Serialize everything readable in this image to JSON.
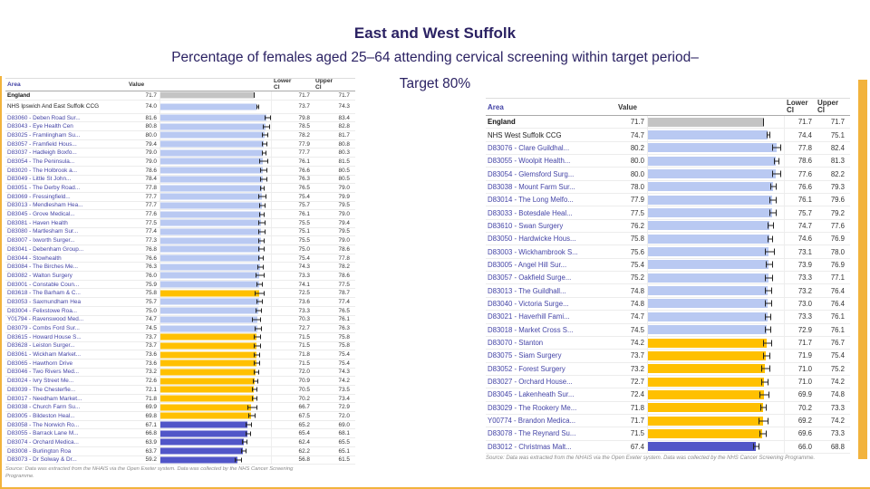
{
  "slide": {
    "title": "East and West Suffolk",
    "subtitle_line1": "Percentage of females aged 25–64 attending cervical screening within target period–",
    "subtitle_line2": "Target 80%"
  },
  "table_columns": {
    "area": "Area",
    "value": "Value",
    "lower": "Lower\nCI",
    "upper": "Upper\nCI"
  },
  "source": "Source: Data was extracted from the NHAIS via the Open Exeter system. Data was collected by the NHS Cancer Screening Programme.",
  "colors": {
    "title": "#2b2263",
    "accent": "#f2b33d",
    "england": "#c4c4c4",
    "ccg": "#b9c9f2",
    "similar": "#b9c9f2",
    "worse": "#ffc000",
    "worst": "#5156c8"
  },
  "chart_data": [
    {
      "type": "bar",
      "xlim": [
        0,
        85
      ],
      "legend_note": "bar colours: grey = England, light blue = similar/above, amber = worse, dark blue = lowest",
      "rows": [
        {
          "area": "England",
          "value": 71.7,
          "lower": 71.7,
          "upper": 71.7,
          "band": "england"
        },
        {
          "area": "NHS Ipswich And East Suffolk CCG",
          "value": 74.0,
          "lower": 73.7,
          "upper": 74.3,
          "band": "ccg",
          "wrap": true
        },
        {
          "area": "D83060 - Deben Road Sur...",
          "value": 81.6,
          "lower": 79.8,
          "upper": 83.4,
          "band": "similar"
        },
        {
          "area": "D83043 - Eye Health Cen",
          "value": 80.8,
          "lower": 78.5,
          "upper": 82.8,
          "band": "similar"
        },
        {
          "area": "D83025 - Framlingham Su...",
          "value": 80.0,
          "lower": 78.2,
          "upper": 81.7,
          "band": "similar"
        },
        {
          "area": "D83057 - Framfield Hous...",
          "value": 79.4,
          "lower": 77.9,
          "upper": 80.8,
          "band": "similar"
        },
        {
          "area": "D83037 - Hadleigh Boxfo...",
          "value": 79.0,
          "lower": 77.7,
          "upper": 80.3,
          "band": "similar"
        },
        {
          "area": "D83054 - The Peninsula...",
          "value": 79.0,
          "lower": 76.1,
          "upper": 81.5,
          "band": "similar"
        },
        {
          "area": "D83020 - The Holbrook a...",
          "value": 78.6,
          "lower": 76.6,
          "upper": 80.5,
          "band": "similar"
        },
        {
          "area": "D83049 - Little St John...",
          "value": 78.4,
          "lower": 76.3,
          "upper": 80.5,
          "band": "similar"
        },
        {
          "area": "D83051 - The Derby Road...",
          "value": 77.8,
          "lower": 76.5,
          "upper": 79.0,
          "band": "similar"
        },
        {
          "area": "D83069 - Fressingfield...",
          "value": 77.7,
          "lower": 75.4,
          "upper": 79.9,
          "band": "similar"
        },
        {
          "area": "D83013 - Mendlesham Hea...",
          "value": 77.7,
          "lower": 75.7,
          "upper": 79.5,
          "band": "similar"
        },
        {
          "area": "D83045 - Grove Medical...",
          "value": 77.6,
          "lower": 76.1,
          "upper": 79.0,
          "band": "similar"
        },
        {
          "area": "D83081 - Haven Health",
          "value": 77.5,
          "lower": 75.5,
          "upper": 79.4,
          "band": "similar"
        },
        {
          "area": "D83080 - Martlesham Sur...",
          "value": 77.4,
          "lower": 75.1,
          "upper": 79.5,
          "band": "similar"
        },
        {
          "area": "D83007 - Ixworth Surger...",
          "value": 77.3,
          "lower": 75.5,
          "upper": 79.0,
          "band": "similar"
        },
        {
          "area": "D83041 - Debenham Group...",
          "value": 76.8,
          "lower": 75.0,
          "upper": 78.6,
          "band": "similar"
        },
        {
          "area": "D83044 - Stowhealth",
          "value": 76.6,
          "lower": 75.4,
          "upper": 77.8,
          "band": "similar"
        },
        {
          "area": "D83084 - The Birches Me...",
          "value": 76.3,
          "lower": 74.3,
          "upper": 78.2,
          "band": "similar"
        },
        {
          "area": "D83082 - Walton Surgery",
          "value": 76.0,
          "lower": 73.3,
          "upper": 78.6,
          "band": "similar"
        },
        {
          "area": "D83001 - Constable Coun...",
          "value": 75.9,
          "lower": 74.1,
          "upper": 77.5,
          "band": "similar"
        },
        {
          "area": "D83618 - The Barham & C...",
          "value": 75.8,
          "lower": 72.5,
          "upper": 78.7,
          "band": "worse"
        },
        {
          "area": "D83053 - Saxmundham Hea",
          "value": 75.7,
          "lower": 73.6,
          "upper": 77.4,
          "band": "similar"
        },
        {
          "area": "D83004 - Felixstowe Roa...",
          "value": 75.0,
          "lower": 73.3,
          "upper": 76.5,
          "band": "similar"
        },
        {
          "area": "Y01794 - Ravenswood Med...",
          "value": 74.7,
          "lower": 70.3,
          "upper": 76.1,
          "band": "similar"
        },
        {
          "area": "D83079 - Combs Ford Sur...",
          "value": 74.5,
          "lower": 72.7,
          "upper": 76.3,
          "band": "similar"
        },
        {
          "area": "D83615 - Howard House S...",
          "value": 73.7,
          "lower": 71.5,
          "upper": 75.8,
          "band": "worse"
        },
        {
          "area": "D83628 - Leiston Surger...",
          "value": 73.7,
          "lower": 71.5,
          "upper": 75.8,
          "band": "worse"
        },
        {
          "area": "D83061 - Wickham Market...",
          "value": 73.6,
          "lower": 71.8,
          "upper": 75.4,
          "band": "worse"
        },
        {
          "area": "D83065 - Hawthorn Drive",
          "value": 73.6,
          "lower": 71.5,
          "upper": 75.4,
          "band": "worse"
        },
        {
          "area": "D83046 - Two Rivers Med...",
          "value": 73.2,
          "lower": 72.0,
          "upper": 74.3,
          "band": "worse"
        },
        {
          "area": "D83024 - Ivry Street Me...",
          "value": 72.6,
          "lower": 70.9,
          "upper": 74.2,
          "band": "worse"
        },
        {
          "area": "D83039 - The Chesterfie...",
          "value": 72.1,
          "lower": 70.5,
          "upper": 73.5,
          "band": "worse"
        },
        {
          "area": "D83017 - Needham Market...",
          "value": 71.8,
          "lower": 70.2,
          "upper": 73.4,
          "band": "worse"
        },
        {
          "area": "D83038 - Church Farm Su...",
          "value": 69.9,
          "lower": 66.7,
          "upper": 72.9,
          "band": "worse"
        },
        {
          "area": "D83005 - Bildeston Heal...",
          "value": 69.8,
          "lower": 67.5,
          "upper": 72.0,
          "band": "worse"
        },
        {
          "area": "D83058 - The Norwich Ro...",
          "value": 67.1,
          "lower": 65.2,
          "upper": 69.0,
          "band": "worst"
        },
        {
          "area": "D83055 - Barrack Lane M...",
          "value": 66.8,
          "lower": 65.4,
          "upper": 68.1,
          "band": "worst"
        },
        {
          "area": "D83074 - Orchard Medica...",
          "value": 63.9,
          "lower": 62.4,
          "upper": 65.5,
          "band": "worst"
        },
        {
          "area": "D83008 - Burlington Roa",
          "value": 63.7,
          "lower": 62.2,
          "upper": 65.1,
          "band": "worst"
        },
        {
          "area": "D83073 - Dr Solway & Dr...",
          "value": 59.2,
          "lower": 56.8,
          "upper": 61.5,
          "band": "worst"
        }
      ]
    },
    {
      "type": "bar",
      "xlim": [
        0,
        85
      ],
      "legend_note": "bar colours: grey = England, light blue = similar/above, amber = worse, dark blue = lowest",
      "rows": [
        {
          "area": "England",
          "value": 71.7,
          "lower": 71.7,
          "upper": 71.7,
          "band": "england"
        },
        {
          "area": "NHS West Suffolk CCG",
          "value": 74.7,
          "lower": 74.4,
          "upper": 75.1,
          "band": "ccg"
        },
        {
          "area": "D83076 - Clare Guildhal...",
          "value": 80.2,
          "lower": 77.8,
          "upper": 82.4,
          "band": "similar"
        },
        {
          "area": "D83055 - Woolpit Health...",
          "value": 80.0,
          "lower": 78.6,
          "upper": 81.3,
          "band": "similar"
        },
        {
          "area": "D83054 - Glemsford Surg...",
          "value": 80.0,
          "lower": 77.6,
          "upper": 82.2,
          "band": "similar"
        },
        {
          "area": "D83038 - Mount Farm Sur...",
          "value": 78.0,
          "lower": 76.6,
          "upper": 79.3,
          "band": "similar"
        },
        {
          "area": "D83014 - The Long Melfo...",
          "value": 77.9,
          "lower": 76.1,
          "upper": 79.6,
          "band": "similar"
        },
        {
          "area": "D83033 - Botesdale Heal...",
          "value": 77.5,
          "lower": 75.7,
          "upper": 79.2,
          "band": "similar"
        },
        {
          "area": "D83610 - Swan Surgery",
          "value": 76.2,
          "lower": 74.7,
          "upper": 77.6,
          "band": "similar"
        },
        {
          "area": "D83050 - Hardwicke Hous...",
          "value": 75.8,
          "lower": 74.6,
          "upper": 76.9,
          "band": "similar"
        },
        {
          "area": "D83003 - Wickhambrook S...",
          "value": 75.6,
          "lower": 73.1,
          "upper": 78.0,
          "band": "similar"
        },
        {
          "area": "D83005 - Angel Hill Sur...",
          "value": 75.4,
          "lower": 73.9,
          "upper": 76.9,
          "band": "similar"
        },
        {
          "area": "D83057 - Oakfield Surge...",
          "value": 75.2,
          "lower": 73.3,
          "upper": 77.1,
          "band": "similar"
        },
        {
          "area": "D83013 - The Guildhall...",
          "value": 74.8,
          "lower": 73.2,
          "upper": 76.4,
          "band": "similar"
        },
        {
          "area": "D83040 - Victoria Surge...",
          "value": 74.8,
          "lower": 73.0,
          "upper": 76.4,
          "band": "similar"
        },
        {
          "area": "D83021 - Haverhill Fami...",
          "value": 74.7,
          "lower": 73.3,
          "upper": 76.1,
          "band": "similar"
        },
        {
          "area": "D83018 - Market Cross S...",
          "value": 74.5,
          "lower": 72.9,
          "upper": 76.1,
          "band": "similar"
        },
        {
          "area": "D83070 - Stanton",
          "value": 74.2,
          "lower": 71.7,
          "upper": 76.7,
          "band": "worse"
        },
        {
          "area": "D83075 - Siam Surgery",
          "value": 73.7,
          "lower": 71.9,
          "upper": 75.4,
          "band": "worse"
        },
        {
          "area": "D83052 - Forest Surgery",
          "value": 73.2,
          "lower": 71.0,
          "upper": 75.2,
          "band": "worse"
        },
        {
          "area": "D83027 - Orchard House...",
          "value": 72.7,
          "lower": 71.0,
          "upper": 74.2,
          "band": "worse"
        },
        {
          "area": "D83045 - Lakenheath Sur...",
          "value": 72.4,
          "lower": 69.9,
          "upper": 74.8,
          "band": "worse"
        },
        {
          "area": "D83029 - The Rookery Me...",
          "value": 71.8,
          "lower": 70.2,
          "upper": 73.3,
          "band": "worse"
        },
        {
          "area": "Y00774 - Brandon Medica...",
          "value": 71.7,
          "lower": 69.2,
          "upper": 74.2,
          "band": "worse"
        },
        {
          "area": "D83078 - The Reynard Su...",
          "value": 71.5,
          "lower": 69.6,
          "upper": 73.3,
          "band": "worse"
        },
        {
          "area": "D83012 - Christmas Malt...",
          "value": 67.4,
          "lower": 66.0,
          "upper": 68.8,
          "band": "worst"
        }
      ]
    }
  ]
}
